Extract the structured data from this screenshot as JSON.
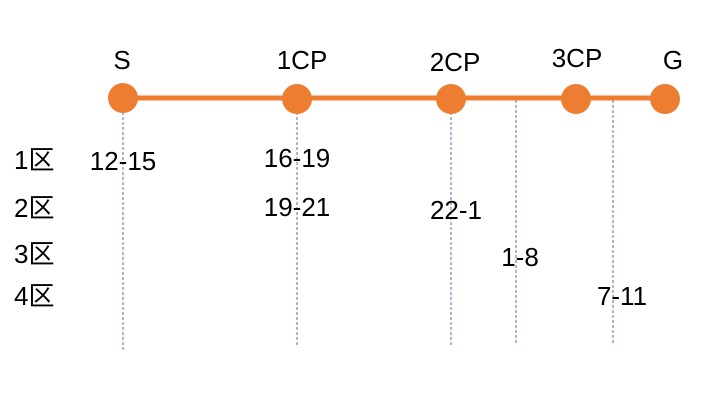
{
  "nodes": [
    {
      "label": "S"
    },
    {
      "label": "1CP"
    },
    {
      "label": "2CP"
    },
    {
      "label": "3CP"
    },
    {
      "label": "G"
    }
  ],
  "sections": [
    {
      "label": "1区"
    },
    {
      "label": "2区"
    },
    {
      "label": "3区"
    },
    {
      "label": "4区"
    }
  ],
  "times": [
    "12-15",
    "16-19",
    "19-21",
    "22-1",
    "1-8",
    "7-11"
  ]
}
